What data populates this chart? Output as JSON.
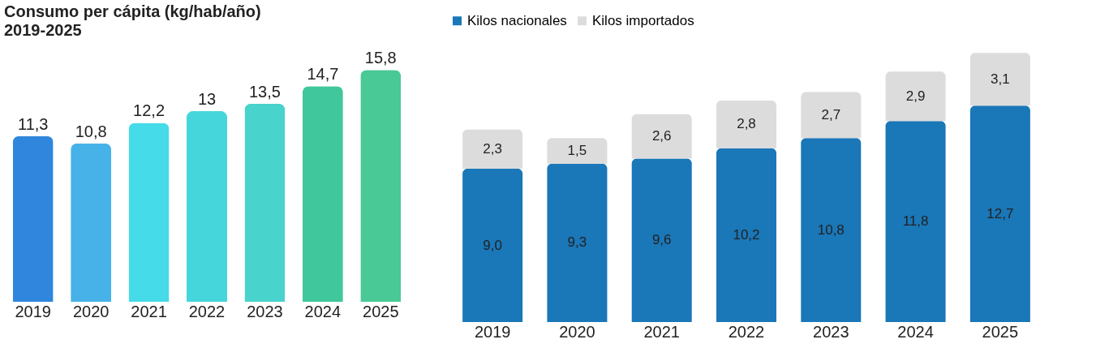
{
  "chart_data": [
    {
      "type": "bar",
      "title": "Consumo per cápita (kg/hab/año)",
      "subtitle": "2019-2025",
      "categories": [
        "2019",
        "2020",
        "2021",
        "2022",
        "2023",
        "2024",
        "2025"
      ],
      "values": [
        11.3,
        10.8,
        12.2,
        13,
        13.5,
        14.7,
        15.8
      ],
      "value_labels": [
        "11,3",
        "10,8",
        "12,2",
        "13",
        "13,5",
        "14,7",
        "15,8"
      ],
      "colors": [
        "#2f86dc",
        "#46b2e8",
        "#45dbe8",
        "#45d6dc",
        "#48d3cc",
        "#40c79c",
        "#49c996"
      ],
      "grid": false
    },
    {
      "type": "bar",
      "stacked": true,
      "legend": "top",
      "grid": false,
      "categories": [
        "2019",
        "2020",
        "2021",
        "2022",
        "2023",
        "2024",
        "2025"
      ],
      "series": [
        {
          "name": "Kilos nacionales",
          "color": "#1a77b8",
          "values": [
            9.0,
            9.3,
            9.6,
            10.2,
            10.8,
            11.8,
            12.7
          ],
          "value_labels": [
            "9,0",
            "9,3",
            "9,6",
            "10,2",
            "10,8",
            "11,8",
            "12,7"
          ]
        },
        {
          "name": "Kilos importados",
          "color": "#dcdcdc",
          "values": [
            2.3,
            1.5,
            2.6,
            2.8,
            2.7,
            2.9,
            3.1
          ],
          "value_labels": [
            "2,3",
            "1,5",
            "2,6",
            "2,8",
            "2,7",
            "2,9",
            "3,1"
          ]
        }
      ]
    }
  ]
}
